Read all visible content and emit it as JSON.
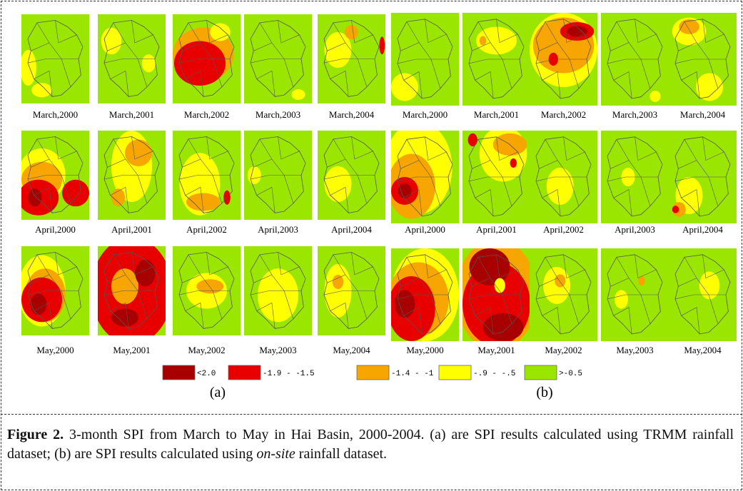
{
  "panel_a": {
    "label": "(a)",
    "rows": [
      [
        "March,2000",
        "March,2001",
        "March,2002",
        "March,2003",
        "March,2004"
      ],
      [
        "April,2000",
        "April,2001",
        "April,2002",
        "April,2003",
        "April,2004"
      ],
      [
        "May,2000",
        "May,2001",
        "May,2002",
        "May,2003",
        "May,2004"
      ]
    ]
  },
  "panel_b": {
    "label": "(b)",
    "rows": [
      [
        "March,2000",
        "March,2001",
        "March,2002",
        "March,2003",
        "March,2004"
      ],
      [
        "April,2000",
        "April,2001",
        "April,2002",
        "April,2003",
        "April,2004"
      ],
      [
        "May,2000",
        "May,2001",
        "May,2002",
        "May,2003",
        "May,2004"
      ]
    ]
  },
  "legend": {
    "items": [
      {
        "label": "<2.0",
        "color": "#a80000"
      },
      {
        "label": "-1.9 - -1.5",
        "color": "#e80000"
      },
      {
        "label": "-1.4 - -1",
        "color": "#f7a500"
      },
      {
        "label": "-.9 - -.5",
        "color": "#ffff00"
      },
      {
        "label": ">-0.5",
        "color": "#9be600"
      }
    ]
  },
  "caption": {
    "label": "Figure 2.",
    "text_1": "3-month SPI from March to May in Hai Basin, 2000-2004. (a) are SPI results calculated using TRMM rainfall dataset; (b) are SPI results calculated using",
    "emphasis": "on-site",
    "text_2": "rainfall dataset."
  }
}
